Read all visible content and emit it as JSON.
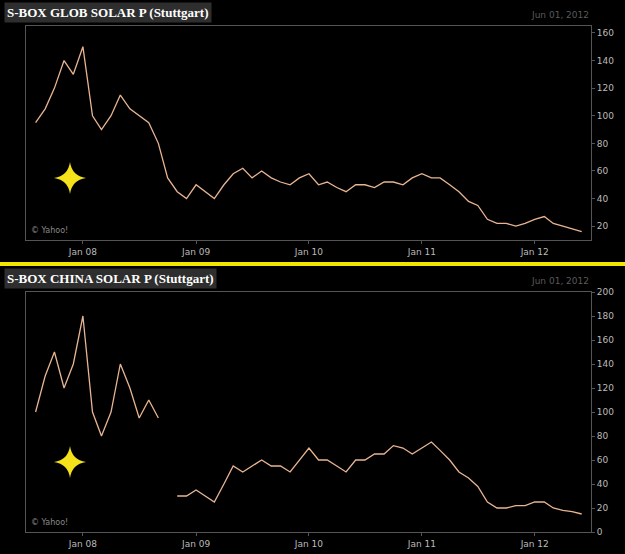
{
  "chart_data": [
    {
      "type": "line",
      "title": "S-BOX GLOB SOLAR P (Stuttgart)",
      "annotations": [
        "Jun 01, 2012",
        "© Yahoo!"
      ],
      "color": "#e8b592",
      "grid": false,
      "x": [
        "2007-08",
        "2007-09",
        "2007-10",
        "2007-11",
        "2007-12",
        "2008-01",
        "2008-02",
        "2008-03",
        "2008-04",
        "2008-05",
        "2008-06",
        "2008-07",
        "2008-08",
        "2008-09",
        "2008-10",
        "2008-11",
        "2008-12",
        "2009-01",
        "2009-02",
        "2009-03",
        "2009-04",
        "2009-05",
        "2009-06",
        "2009-07",
        "2009-08",
        "2009-09",
        "2009-10",
        "2009-11",
        "2009-12",
        "2010-01",
        "2010-02",
        "2010-03",
        "2010-04",
        "2010-05",
        "2010-06",
        "2010-07",
        "2010-08",
        "2010-09",
        "2010-10",
        "2010-11",
        "2010-12",
        "2011-01",
        "2011-02",
        "2011-03",
        "2011-04",
        "2011-05",
        "2011-06",
        "2011-07",
        "2011-08",
        "2011-09",
        "2011-10",
        "2011-11",
        "2011-12",
        "2012-01",
        "2012-02",
        "2012-03",
        "2012-04",
        "2012-05",
        "2012-06"
      ],
      "values": [
        95,
        105,
        120,
        140,
        130,
        150,
        100,
        90,
        100,
        115,
        105,
        100,
        95,
        80,
        55,
        45,
        40,
        50,
        45,
        40,
        50,
        58,
        62,
        55,
        60,
        55,
        52,
        50,
        55,
        58,
        50,
        52,
        48,
        45,
        50,
        50,
        48,
        52,
        52,
        50,
        55,
        58,
        55,
        55,
        50,
        45,
        38,
        35,
        25,
        22,
        22,
        20,
        22,
        25,
        27,
        22,
        20,
        18,
        16
      ],
      "xlim": [
        "2007-07",
        "2012-07"
      ],
      "xticks": [
        {
          "value": "2008-01",
          "label": "Jan 08"
        },
        {
          "value": "2009-01",
          "label": "Jan 09"
        },
        {
          "value": "2010-01",
          "label": "Jan 10"
        },
        {
          "value": "2011-01",
          "label": "Jan 11"
        },
        {
          "value": "2012-01",
          "label": "Jan 12"
        }
      ],
      "ylim": [
        10,
        165
      ],
      "yticks": [
        20,
        40,
        60,
        80,
        100,
        120,
        140,
        160
      ]
    },
    {
      "type": "line",
      "title": "S-BOX CHINA SOLAR P (Stuttgart)",
      "annotations": [
        "Jun 01, 2012",
        "© Yahoo!"
      ],
      "color": "#e8b592",
      "grid": false,
      "x": [
        "2007-08",
        "2007-09",
        "2007-10",
        "2007-11",
        "2007-12",
        "2008-01",
        "2008-02",
        "2008-03",
        "2008-04",
        "2008-05",
        "2008-06",
        "2008-07",
        "2008-08",
        "2008-09",
        "2008-10",
        "2008-11",
        "2008-12",
        "2009-01",
        "2009-02",
        "2009-03",
        "2009-04",
        "2009-05",
        "2009-06",
        "2009-07",
        "2009-08",
        "2009-09",
        "2009-10",
        "2009-11",
        "2009-12",
        "2010-01",
        "2010-02",
        "2010-03",
        "2010-04",
        "2010-05",
        "2010-06",
        "2010-07",
        "2010-08",
        "2010-09",
        "2010-10",
        "2010-11",
        "2010-12",
        "2011-01",
        "2011-02",
        "2011-03",
        "2011-04",
        "2011-05",
        "2011-06",
        "2011-07",
        "2011-08",
        "2011-09",
        "2011-10",
        "2011-11",
        "2011-12",
        "2012-01",
        "2012-02",
        "2012-03",
        "2012-04",
        "2012-05",
        "2012-06"
      ],
      "values": [
        100,
        130,
        150,
        120,
        140,
        180,
        100,
        80,
        100,
        140,
        120,
        95,
        110,
        95,
        null,
        30,
        30,
        35,
        30,
        25,
        40,
        55,
        50,
        55,
        60,
        55,
        55,
        50,
        60,
        70,
        60,
        60,
        55,
        50,
        60,
        60,
        65,
        65,
        72,
        70,
        65,
        70,
        75,
        68,
        60,
        50,
        45,
        38,
        25,
        20,
        20,
        22,
        22,
        25,
        25,
        20,
        18,
        17,
        15
      ],
      "xlim": [
        "2007-07",
        "2012-07"
      ],
      "xticks": [
        {
          "value": "2008-01",
          "label": "Jan 08"
        },
        {
          "value": "2009-01",
          "label": "Jan 09"
        },
        {
          "value": "2010-01",
          "label": "Jan 10"
        },
        {
          "value": "2011-01",
          "label": "Jan 11"
        },
        {
          "value": "2012-01",
          "label": "Jan 12"
        }
      ],
      "ylim": [
        0,
        200
      ],
      "yticks": [
        0,
        20,
        40,
        60,
        80,
        100,
        120,
        140,
        160,
        180,
        200
      ]
    }
  ]
}
